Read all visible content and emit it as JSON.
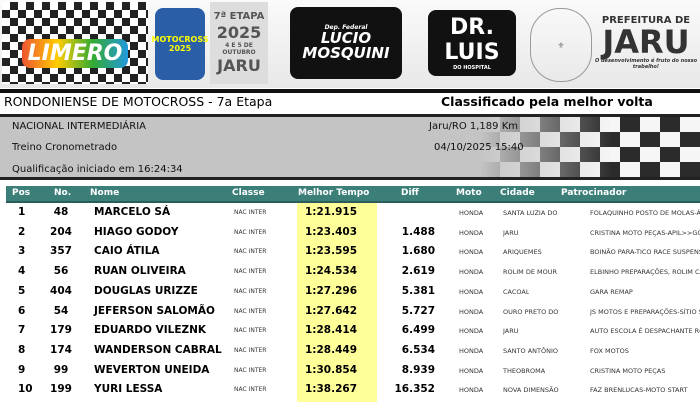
{
  "header": {
    "logos": {
      "limero": "LIMERO",
      "limero_sub": "Liga Independente de Motocross do Estado de Rondônia",
      "motocross": "MOTOCROSS 2025",
      "etapa": "7ª ETAPA",
      "ano": "2025",
      "datas": "4 E 5 DE OUTUBRO",
      "cidade": "JARU",
      "lucio": "LUCIO MOSQUINI",
      "lucio_sub": "Dep. Federal",
      "luis": "DR. LUIS",
      "luis_sub": "DO HOSPITAL",
      "prefeitura": "PREFEITURA DE",
      "prefeitura_city": "JARU",
      "prefeitura_slogan": "O desenvolvimento é fruto do nosso trabalho!"
    }
  },
  "event": {
    "title": "RONDONIENSE DE MOTOCROSS - 7a Etapa",
    "subtitle": "Classificado pela melhor volta",
    "category": "NACIONAL INTERMEDIÁRIA",
    "session": "Treino Cronometrado",
    "qualification": "Qualificação iniciado em 16:24:34",
    "track": "Jaru/RO 1,189 Km",
    "datetime": "04/10/2025 15:40"
  },
  "table": {
    "columns": [
      "Pos",
      "No.",
      "Nome",
      "Classe",
      "Melhor Tempo",
      "Diff",
      "Moto",
      "Cidade",
      "Patrocinador"
    ],
    "rows": [
      {
        "pos": "1",
        "no": "48",
        "nome": "MARCELO SÁ",
        "classe": "NAC INTER",
        "tempo": "1:21.915",
        "diff": "",
        "moto": "HONDA",
        "cidade": "SANTA LUZIA DO",
        "patrocinador": "FOLAQUINHO POSTO DE MOLAS-ÁGUIA MOTOS"
      },
      {
        "pos": "2",
        "no": "204",
        "nome": "HIAGO GODOY",
        "classe": "NAC INTER",
        "tempo": "1:23.403",
        "diff": "1.488",
        "moto": "HONDA",
        "cidade": "JARU",
        "patrocinador": "CRISTINA MOTO PEÇAS-APIL>>GO-TERERÊ 200"
      },
      {
        "pos": "3",
        "no": "357",
        "nome": "CAIO ÁTILA",
        "classe": "NAC INTER",
        "tempo": "1:23.595",
        "diff": "1.680",
        "moto": "HONDA",
        "cidade": "ARIQUEMES",
        "patrocinador": "BOINÃO PARA-TICO RACE SUSPENSÃO-PICAPAU"
      },
      {
        "pos": "4",
        "no": "56",
        "nome": "RUAN OLIVEIRA",
        "classe": "NAC INTER",
        "tempo": "1:24.534",
        "diff": "2.619",
        "moto": "HONDA",
        "cidade": "ROLIM DE MOUR",
        "patrocinador": "ELBINHO PREPARAÇÕES, ROLIM CAR, DUARTE T"
      },
      {
        "pos": "5",
        "no": "404",
        "nome": "DOUGLAS URIZZE",
        "classe": "NAC INTER",
        "tempo": "1:27.296",
        "diff": "5.381",
        "moto": "HONDA",
        "cidade": "CACOAL",
        "patrocinador": "GARA REMAP"
      },
      {
        "pos": "6",
        "no": "54",
        "nome": "JEFERSON SALOMÃO",
        "classe": "NAC INTER",
        "tempo": "1:27.642",
        "diff": "5.727",
        "moto": "HONDA",
        "cidade": "OURO PRETO DO",
        "patrocinador": "JS MOTOS E PREPARAÇÕES-SÍTIO SALOMÃO"
      },
      {
        "pos": "7",
        "no": "179",
        "nome": "EDUARDO VILEZNK",
        "classe": "NAC INTER",
        "tempo": "1:28.414",
        "diff": "6.499",
        "moto": "HONDA",
        "cidade": "JARU",
        "patrocinador": "AUTO ESCOLA É DESPACHANTE ROBERTO-CLEIDE"
      },
      {
        "pos": "8",
        "no": "174",
        "nome": "WANDERSON CABRAL",
        "classe": "NAC INTER",
        "tempo": "1:28.449",
        "diff": "6.534",
        "moto": "HONDA",
        "cidade": "SANTO ANTÔNIO",
        "patrocinador": "FOX MOTOS"
      },
      {
        "pos": "9",
        "no": "99",
        "nome": "WEVERTON UNEIDA",
        "classe": "NAC INTER",
        "tempo": "1:30.854",
        "diff": "8.939",
        "moto": "HONDA",
        "cidade": "THEOBROMA",
        "patrocinador": "CRISTINA MOTO PEÇAS"
      },
      {
        "pos": "10",
        "no": "199",
        "nome": "YURI LESSA",
        "classe": "NAC INTER",
        "tempo": "1:38.267",
        "diff": "16.352",
        "moto": "HONDA",
        "cidade": "NOVA DIMENSÃO",
        "patrocinador": "FAZ BRENLUCAS-MOTO START"
      }
    ]
  },
  "colors": {
    "header_bar": "#3c7f79",
    "best_time_highlight": "#ffff99",
    "info_panel": "#c4c4c4"
  }
}
